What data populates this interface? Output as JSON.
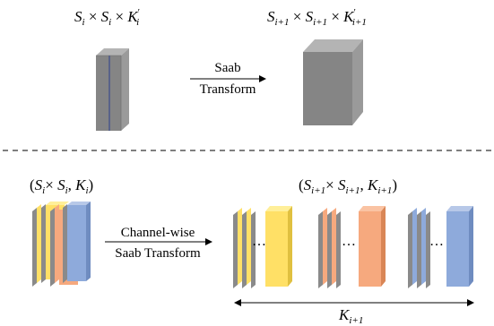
{
  "top": {
    "input_label": {
      "S": "S",
      "i": "i",
      "times": "×",
      "K": "K",
      "prime": "′"
    },
    "output_label": {
      "S": "S",
      "i1": "i+1",
      "times": "×",
      "K": "K",
      "prime": "′"
    },
    "arrow_label_line1": "Saab",
    "arrow_label_line2": "Transform"
  },
  "bottom": {
    "input_label": {
      "open": "(",
      "S": "S",
      "i": "i",
      "times": "×",
      "comma": ",",
      "K": "K",
      "close": ")"
    },
    "output_label": {
      "open": "(",
      "S": "S",
      "i1": "i+1",
      "times": "×",
      "comma": ",",
      "K": "K",
      "close": ")"
    },
    "arrow_label_line1": "Channel-wise",
    "arrow_label_line2": "Saab Transform",
    "ellipsis": "…",
    "span_label": {
      "K": "K",
      "i1": "i+1"
    }
  },
  "colors": {
    "cube": "#8a8a8a",
    "yellow": "#ffe066",
    "salmon": "#f6a97e",
    "blue": "#8eaadb",
    "card_edge": "#8a8a8a"
  }
}
